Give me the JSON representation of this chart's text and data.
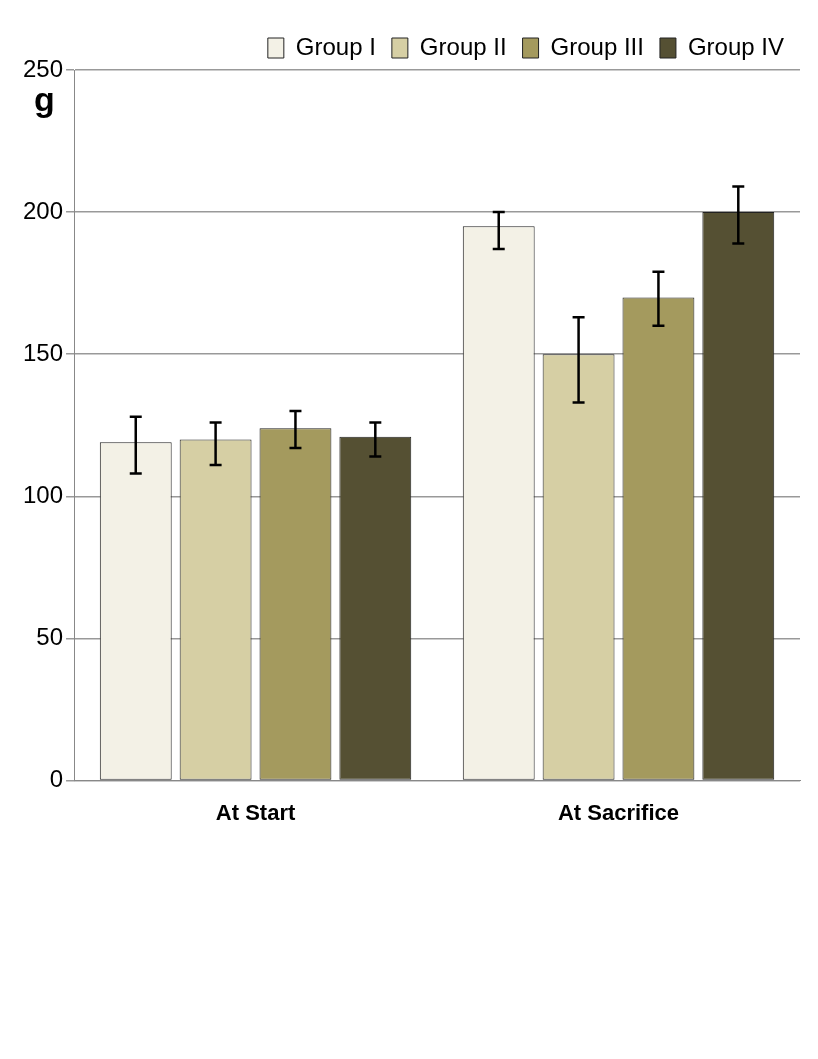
{
  "chart_data": {
    "type": "bar",
    "ylabel": "g",
    "categories": [
      "At Start",
      "At Sacrifice"
    ],
    "series": [
      {
        "name": "Group I",
        "color": "#f3f1e6",
        "values": [
          119,
          195
        ],
        "errors": [
          [
            108,
            128
          ],
          [
            187,
            200
          ]
        ]
      },
      {
        "name": "Group II",
        "color": "#d6cfa4",
        "values": [
          120,
          150
        ],
        "errors": [
          [
            111,
            126
          ],
          [
            133,
            163
          ]
        ]
      },
      {
        "name": "Group III",
        "color": "#a49a5e",
        "values": [
          124,
          170
        ],
        "errors": [
          [
            117,
            130
          ],
          [
            160,
            179
          ]
        ]
      },
      {
        "name": "Group IV",
        "color": "#555033",
        "values": [
          121,
          200
        ],
        "errors": [
          [
            114,
            126
          ],
          [
            189,
            209
          ]
        ]
      }
    ],
    "ylim": [
      0,
      250
    ],
    "yticks": [
      0,
      50,
      100,
      150,
      200,
      250
    ],
    "grid": "y",
    "legend": "top right"
  }
}
